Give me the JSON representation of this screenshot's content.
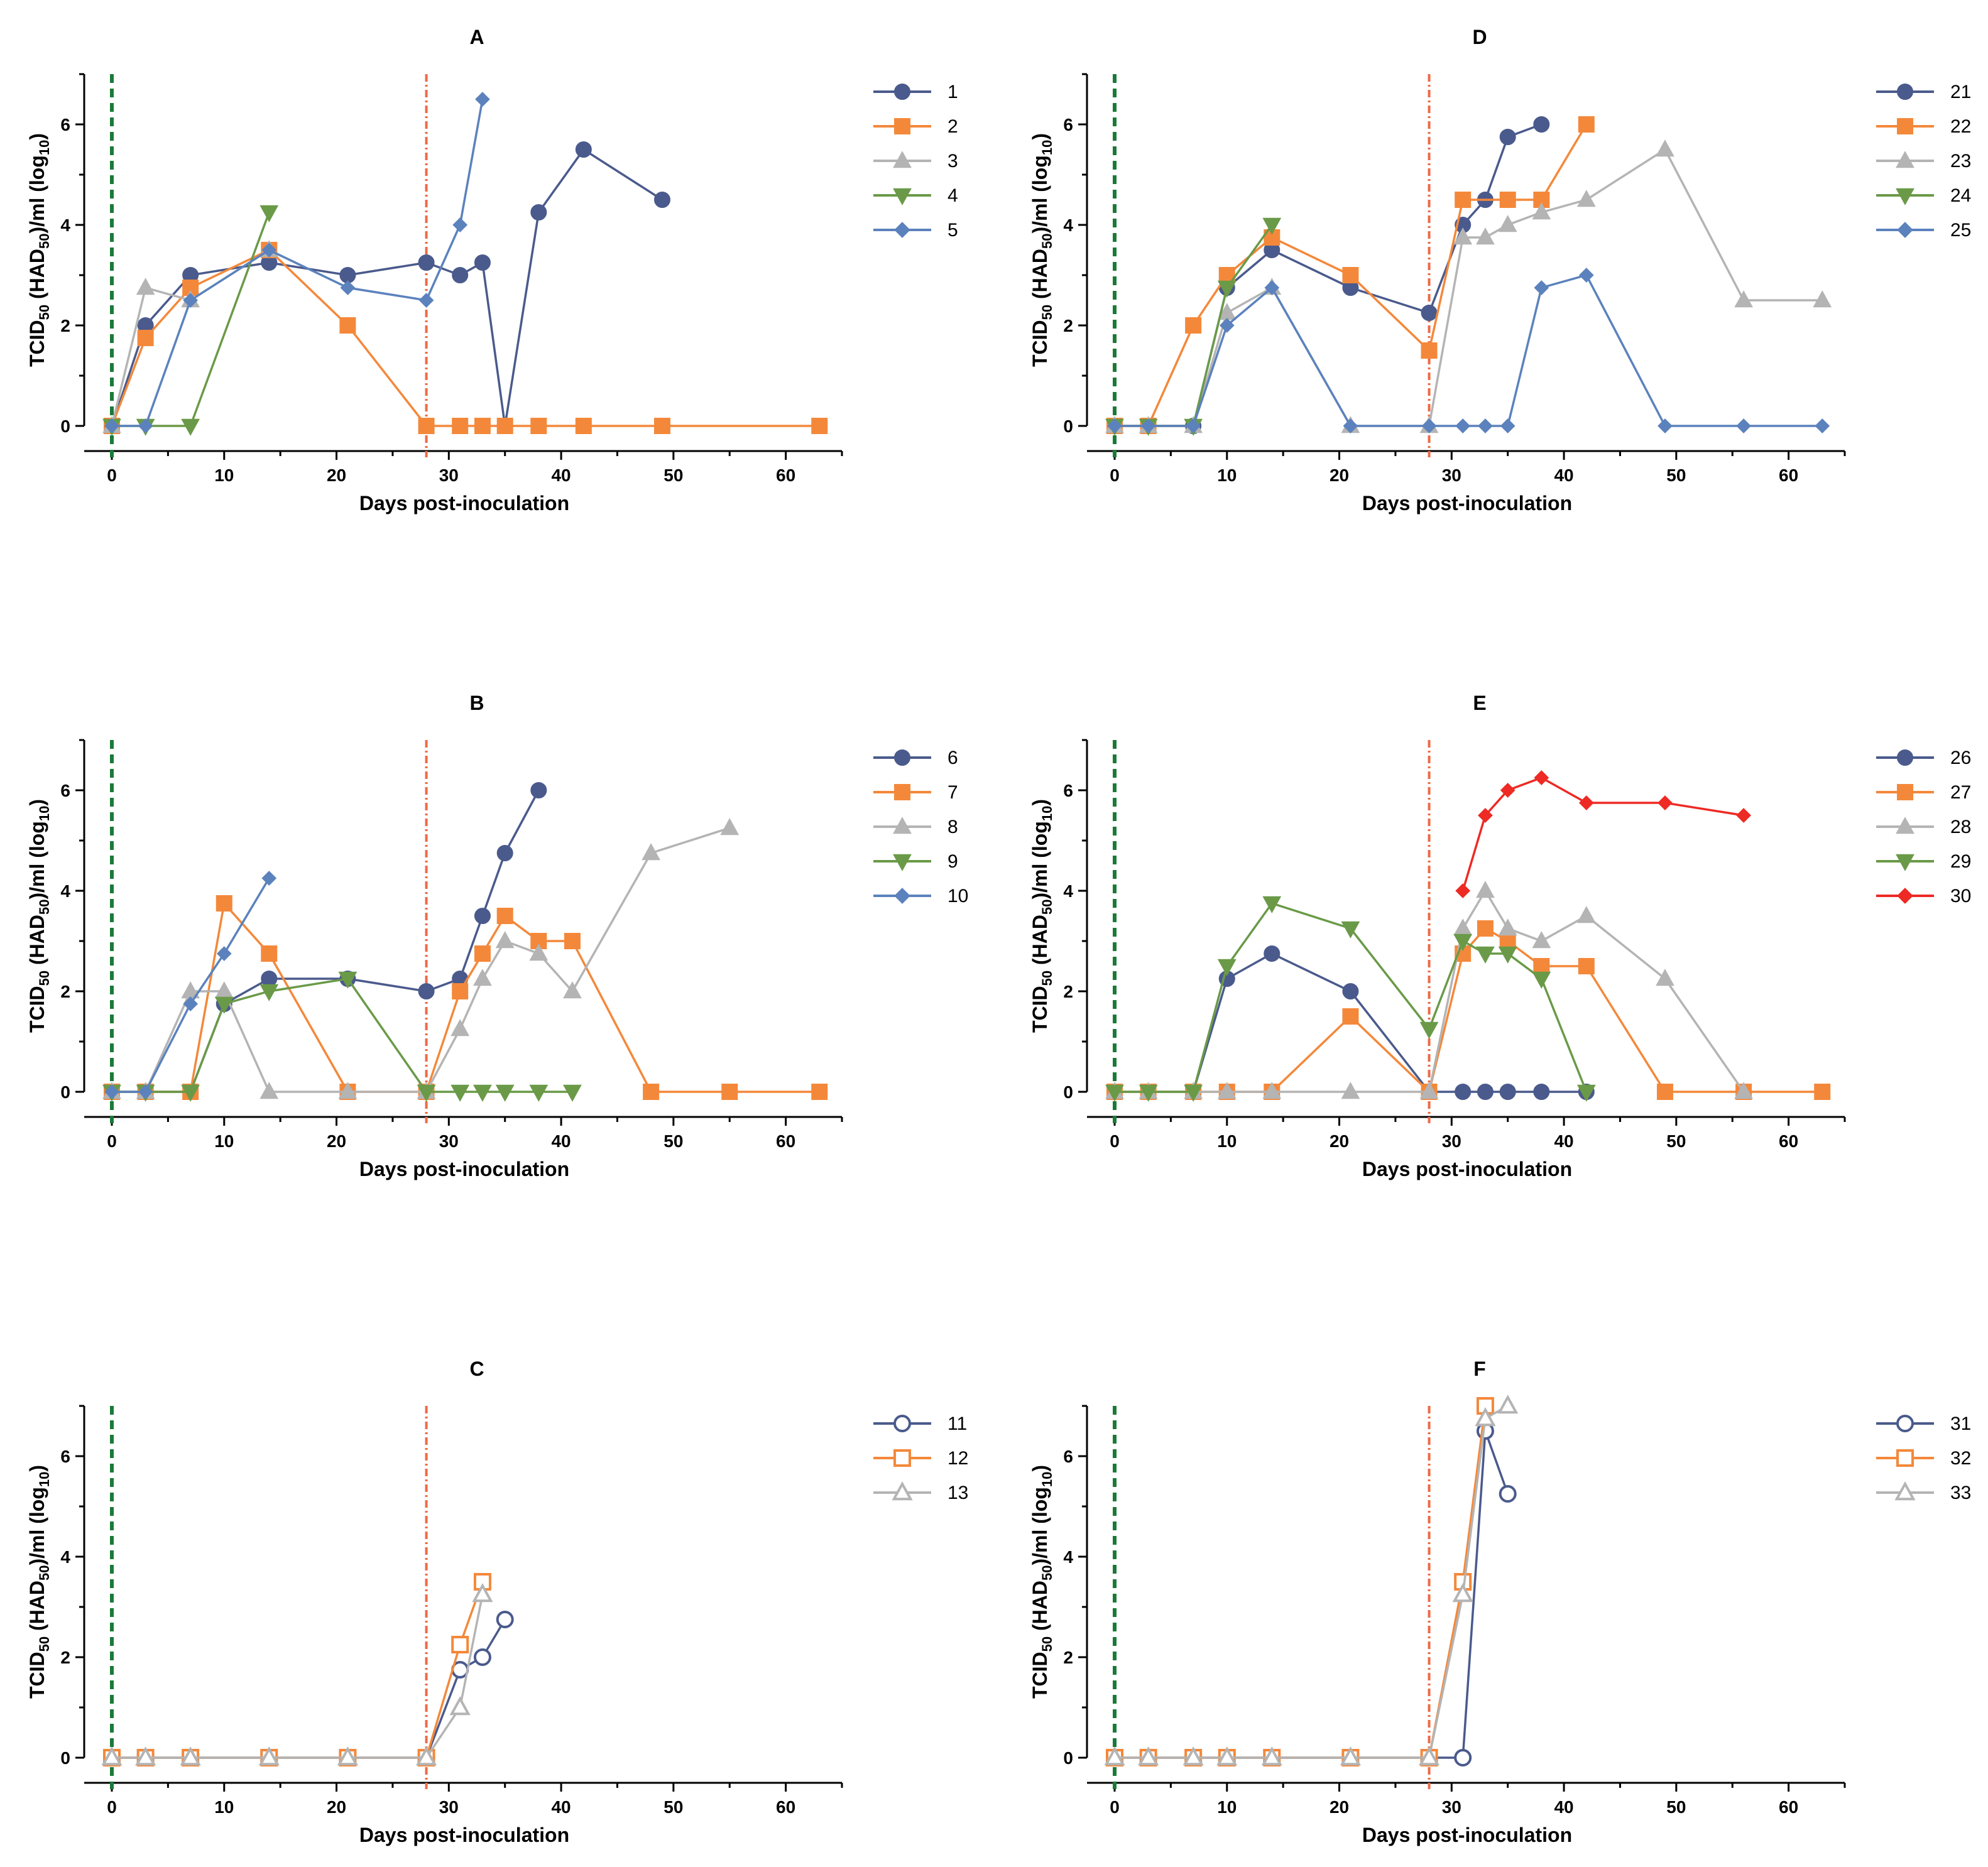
{
  "figure": {
    "colors": {
      "navy": "#4a5a8c",
      "orange": "#f4883a",
      "gray": "#b4b4b4",
      "green": "#6a9a48",
      "blue": "#5b82bd",
      "red": "#ee2a24",
      "inoculation_line": "#1a7a38",
      "challenge_line": "#ee6a44"
    }
  },
  "chart_data": [
    {
      "type": "line",
      "panel": "A",
      "title": "A",
      "xlabel": "Days post-inoculation",
      "ylabel": "TCID50 (HAD50)/ml (log10)",
      "xlim": [
        0,
        65
      ],
      "ylim": [
        0,
        7
      ],
      "xticks": [
        0,
        10,
        20,
        30,
        40,
        50,
        60
      ],
      "yticks": [
        0,
        2,
        4,
        6
      ],
      "vlines": [
        0,
        28
      ],
      "legend_position": "right",
      "series": [
        {
          "name": "1",
          "color": "#4a5a8c",
          "marker": "circle",
          "filled": true,
          "x": [
            0,
            3,
            7,
            14,
            21,
            28,
            31,
            33,
            35,
            38,
            42,
            49
          ],
          "y": [
            0,
            2,
            3,
            3.25,
            3,
            3.25,
            3,
            3.25,
            0,
            4.25,
            5.5,
            4.5
          ]
        },
        {
          "name": "2",
          "color": "#f4883a",
          "marker": "square",
          "filled": true,
          "x": [
            0,
            3,
            7,
            14,
            21,
            28,
            31,
            33,
            35,
            38,
            42,
            49,
            63
          ],
          "y": [
            0,
            1.75,
            2.75,
            3.5,
            2,
            0,
            0,
            0,
            0,
            0,
            0,
            0,
            0
          ]
        },
        {
          "name": "3",
          "color": "#b4b4b4",
          "marker": "triangle",
          "filled": true,
          "x": [
            0,
            3,
            7,
            14
          ],
          "y": [
            0,
            2.75,
            2.5,
            3.5
          ]
        },
        {
          "name": "4",
          "color": "#6a9a48",
          "marker": "triangle-down",
          "filled": true,
          "x": [
            0,
            3,
            7,
            14
          ],
          "y": [
            0,
            0,
            0,
            4.25
          ]
        },
        {
          "name": "5",
          "color": "#5b82bd",
          "marker": "diamond",
          "filled": true,
          "x": [
            0,
            3,
            7,
            14,
            21,
            28,
            31,
            33
          ],
          "y": [
            0,
            0,
            2.5,
            3.5,
            2.75,
            2.5,
            4,
            6.5
          ]
        }
      ]
    },
    {
      "type": "line",
      "panel": "B",
      "title": "B",
      "xlabel": "Days post-inoculation",
      "ylabel": "TCID50 (HAD50)/ml (log10)",
      "xlim": [
        0,
        65
      ],
      "ylim": [
        0,
        7
      ],
      "xticks": [
        0,
        10,
        20,
        30,
        40,
        50,
        60
      ],
      "yticks": [
        0,
        2,
        4,
        6
      ],
      "vlines": [
        0,
        28
      ],
      "legend_position": "right",
      "series": [
        {
          "name": "6",
          "color": "#4a5a8c",
          "marker": "circle",
          "filled": true,
          "x": [
            0,
            3,
            7,
            10,
            14,
            21,
            28,
            31,
            33,
            35,
            38
          ],
          "y": [
            0,
            0,
            0,
            1.75,
            2.25,
            2.25,
            2,
            2.25,
            3.5,
            4.75,
            6
          ]
        },
        {
          "name": "7",
          "color": "#f4883a",
          "marker": "square",
          "filled": true,
          "x": [
            0,
            3,
            7,
            10,
            14,
            21,
            28,
            31,
            33,
            35,
            38,
            41,
            48,
            55,
            63
          ],
          "y": [
            0,
            0,
            0,
            3.75,
            2.75,
            0,
            0,
            2,
            2.75,
            3.5,
            3,
            3,
            0,
            0,
            0
          ]
        },
        {
          "name": "8",
          "color": "#b4b4b4",
          "marker": "triangle",
          "filled": true,
          "x": [
            0,
            3,
            7,
            10,
            14,
            21,
            28,
            31,
            33,
            35,
            38,
            41,
            48,
            55
          ],
          "y": [
            0,
            0,
            2,
            2,
            0,
            0,
            0,
            1.25,
            2.25,
            3,
            2.75,
            2,
            4.75,
            5.25
          ]
        },
        {
          "name": "9",
          "color": "#6a9a48",
          "marker": "triangle-down",
          "filled": true,
          "x": [
            0,
            3,
            7,
            10,
            14,
            21,
            28,
            31,
            33,
            35,
            38,
            41
          ],
          "y": [
            0,
            0,
            0,
            1.75,
            2,
            2.25,
            0,
            0,
            0,
            0,
            0,
            0
          ]
        },
        {
          "name": "10",
          "color": "#5b82bd",
          "marker": "diamond",
          "filled": true,
          "x": [
            0,
            3,
            7,
            10,
            14
          ],
          "y": [
            0,
            0,
            1.75,
            2.75,
            4.25
          ]
        }
      ]
    },
    {
      "type": "line",
      "panel": "C",
      "title": "C",
      "xlabel": "Days post-inoculation",
      "ylabel": "TCID50 (HAD50)/ml (log10)",
      "xlim": [
        0,
        65
      ],
      "ylim": [
        0,
        7
      ],
      "xticks": [
        0,
        10,
        20,
        30,
        40,
        50,
        60
      ],
      "yticks": [
        0,
        2,
        4,
        6
      ],
      "vlines": [
        0,
        28
      ],
      "legend_position": "right",
      "series": [
        {
          "name": "11",
          "color": "#4a5a8c",
          "marker": "circle",
          "filled": false,
          "x": [
            0,
            3,
            7,
            14,
            21,
            28,
            31,
            33,
            35
          ],
          "y": [
            0,
            0,
            0,
            0,
            0,
            0,
            1.75,
            2,
            2.75
          ]
        },
        {
          "name": "12",
          "color": "#f4883a",
          "marker": "square",
          "filled": false,
          "x": [
            0,
            3,
            7,
            14,
            21,
            28,
            31,
            33
          ],
          "y": [
            0,
            0,
            0,
            0,
            0,
            0,
            2.25,
            3.5
          ]
        },
        {
          "name": "13",
          "color": "#b4b4b4",
          "marker": "triangle",
          "filled": false,
          "x": [
            0,
            3,
            7,
            14,
            21,
            28,
            31,
            33
          ],
          "y": [
            0,
            0,
            0,
            0,
            0,
            0,
            1,
            3.25
          ]
        }
      ]
    },
    {
      "type": "line",
      "panel": "D",
      "title": "D",
      "xlabel": "Days post-inoculation",
      "ylabel": "TCID50 (HAD50)/ml (log10)",
      "xlim": [
        0,
        65
      ],
      "ylim": [
        0,
        7
      ],
      "xticks": [
        0,
        10,
        20,
        30,
        40,
        50,
        60
      ],
      "yticks": [
        0,
        2,
        4,
        6
      ],
      "vlines": [
        0,
        28
      ],
      "legend_position": "right",
      "series": [
        {
          "name": "21",
          "color": "#4a5a8c",
          "marker": "circle",
          "filled": true,
          "x": [
            0,
            3,
            7,
            10,
            14,
            21,
            28,
            31,
            33,
            35,
            38
          ],
          "y": [
            0,
            0,
            0,
            2.75,
            3.5,
            2.75,
            2.25,
            4,
            4.5,
            5.75,
            6
          ]
        },
        {
          "name": "22",
          "color": "#f4883a",
          "marker": "square",
          "filled": true,
          "x": [
            0,
            3,
            7,
            10,
            14,
            21,
            28,
            31,
            35,
            38,
            42
          ],
          "y": [
            0,
            0,
            2,
            3,
            3.75,
            3,
            1.5,
            4.5,
            4.5,
            4.5,
            6
          ]
        },
        {
          "name": "23",
          "color": "#b4b4b4",
          "marker": "triangle",
          "filled": true,
          "x": [
            0,
            3,
            7,
            10,
            14,
            21,
            28,
            31,
            33,
            35,
            38,
            42,
            49,
            56,
            63
          ],
          "y": [
            0,
            0,
            0,
            2.25,
            2.75,
            0,
            0,
            3.75,
            3.75,
            4,
            4.25,
            4.5,
            5.5,
            2.5,
            2.5
          ]
        },
        {
          "name": "24",
          "color": "#6a9a48",
          "marker": "triangle-down",
          "filled": true,
          "x": [
            0,
            3,
            7,
            10,
            14
          ],
          "y": [
            0,
            0,
            0,
            2.75,
            4
          ]
        },
        {
          "name": "25",
          "color": "#5b82bd",
          "marker": "diamond",
          "filled": true,
          "x": [
            0,
            3,
            7,
            10,
            14,
            21,
            28,
            31,
            33,
            35,
            38,
            42,
            49,
            56,
            63
          ],
          "y": [
            0,
            0,
            0,
            2,
            2.75,
            0,
            0,
            0,
            0,
            0,
            2.75,
            3,
            0,
            0,
            0
          ]
        }
      ]
    },
    {
      "type": "line",
      "panel": "E",
      "title": "E",
      "xlabel": "Days post-inoculation",
      "ylabel": "TCID50 (HAD50)/ml (log10)",
      "xlim": [
        0,
        65
      ],
      "ylim": [
        0,
        7
      ],
      "xticks": [
        0,
        10,
        20,
        30,
        40,
        50,
        60
      ],
      "yticks": [
        0,
        2,
        4,
        6
      ],
      "vlines": [
        0,
        28
      ],
      "legend_position": "right",
      "series": [
        {
          "name": "26",
          "color": "#4a5a8c",
          "marker": "circle",
          "filled": true,
          "x": [
            0,
            3,
            7,
            10,
            14,
            21,
            28,
            31,
            33,
            35,
            38,
            42
          ],
          "y": [
            0,
            0,
            0,
            2.25,
            2.75,
            2,
            0,
            0,
            0,
            0,
            0,
            0
          ]
        },
        {
          "name": "27",
          "color": "#f4883a",
          "marker": "square",
          "filled": true,
          "x": [
            0,
            3,
            7,
            10,
            14,
            21,
            28,
            31,
            33,
            35,
            38,
            42,
            49,
            56,
            63
          ],
          "y": [
            0,
            0,
            0,
            0,
            0,
            1.5,
            0,
            2.75,
            3.25,
            3,
            2.5,
            2.5,
            0,
            0,
            0
          ]
        },
        {
          "name": "28",
          "color": "#b4b4b4",
          "marker": "triangle",
          "filled": true,
          "x": [
            0,
            3,
            7,
            10,
            14,
            21,
            28,
            31,
            33,
            35,
            38,
            42,
            49,
            56
          ],
          "y": [
            0,
            0,
            0,
            0,
            0,
            0,
            0,
            3.25,
            4,
            3.25,
            3,
            3.5,
            2.25,
            0
          ]
        },
        {
          "name": "29",
          "color": "#6a9a48",
          "marker": "triangle-down",
          "filled": true,
          "x": [
            0,
            3,
            7,
            10,
            14,
            21,
            28,
            31,
            33,
            35,
            38,
            42
          ],
          "y": [
            0,
            0,
            0,
            2.5,
            3.75,
            3.25,
            1.25,
            3,
            2.75,
            2.75,
            2.25,
            0
          ]
        },
        {
          "name": "30",
          "color": "#ee2a24",
          "marker": "diamond",
          "filled": true,
          "x": [
            31,
            33,
            35,
            38,
            42,
            49,
            56
          ],
          "y": [
            4,
            5.5,
            6,
            6.25,
            5.75,
            5.75,
            5.5
          ]
        }
      ]
    },
    {
      "type": "line",
      "panel": "F",
      "title": "F",
      "xlabel": "Days post-inoculation",
      "ylabel": "TCID50 (HAD50)/ml (log10)",
      "xlim": [
        0,
        65
      ],
      "ylim": [
        0,
        7
      ],
      "xticks": [
        0,
        10,
        20,
        30,
        40,
        50,
        60
      ],
      "yticks": [
        0,
        2,
        4,
        6
      ],
      "vlines": [
        0,
        28
      ],
      "legend_position": "right",
      "series": [
        {
          "name": "31",
          "color": "#4a5a8c",
          "marker": "circle",
          "filled": false,
          "x": [
            0,
            3,
            7,
            10,
            14,
            21,
            28,
            31,
            33,
            35
          ],
          "y": [
            0,
            0,
            0,
            0,
            0,
            0,
            0,
            0,
            6.5,
            5.25
          ]
        },
        {
          "name": "32",
          "color": "#f4883a",
          "marker": "square",
          "filled": false,
          "x": [
            0,
            3,
            7,
            10,
            14,
            21,
            28,
            31,
            33
          ],
          "y": [
            0,
            0,
            0,
            0,
            0,
            0,
            0,
            3.5,
            7
          ]
        },
        {
          "name": "33",
          "color": "#b4b4b4",
          "marker": "triangle",
          "filled": false,
          "x": [
            0,
            3,
            7,
            10,
            14,
            21,
            28,
            31,
            33,
            35
          ],
          "y": [
            0,
            0,
            0,
            0,
            0,
            0,
            0,
            3.25,
            6.75,
            7
          ]
        }
      ]
    }
  ]
}
